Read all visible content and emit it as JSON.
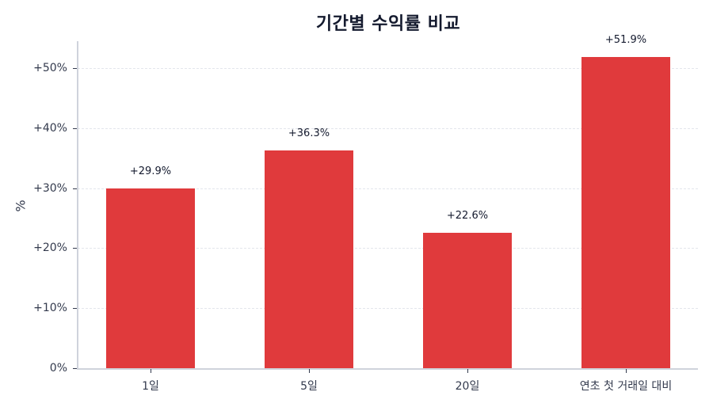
{
  "chart_data": {
    "type": "bar",
    "title": "기간별 수익률 비교",
    "xlabel": "",
    "ylabel": "%",
    "categories": [
      "1일",
      "5일",
      "20일",
      "연초 첫 거래일 대비"
    ],
    "values": [
      29.9,
      36.3,
      22.6,
      51.9
    ],
    "value_labels": [
      "+29.9%",
      "+36.3%",
      "+22.6%",
      "+51.9%"
    ],
    "yticks": [
      0,
      10,
      20,
      30,
      40,
      50
    ],
    "ytick_labels": [
      "0%",
      "+10%",
      "+20%",
      "+30%",
      "+40%",
      "+50%"
    ],
    "ylim": [
      0,
      54.5
    ],
    "grid": true,
    "grid_style": "dashed-horizontal",
    "legend": null,
    "colors": {
      "bar": "#e03a3c",
      "title": "#141a2e",
      "axis": "#cfd3dc",
      "grid": "#e3e6ec",
      "text": "#333a4d"
    }
  }
}
